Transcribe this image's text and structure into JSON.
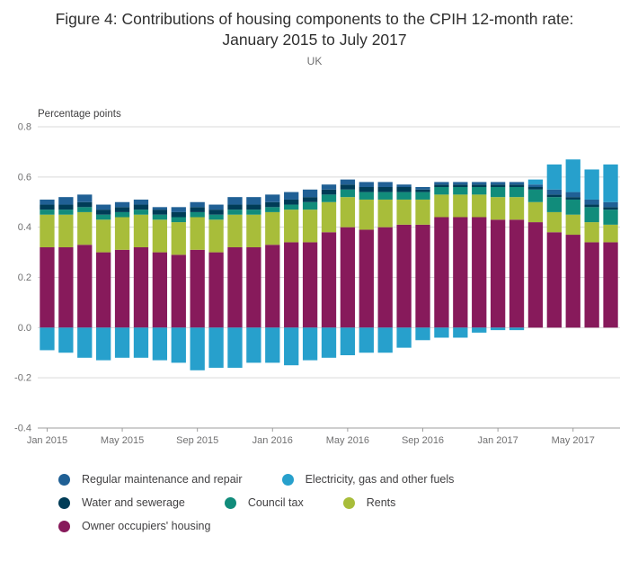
{
  "title": "Figure 4: Contributions of housing components to the CPIH 12-month rate: January 2015 to July 2017",
  "subtitle": "UK",
  "chart_data": {
    "type": "bar",
    "stacked": true,
    "title": "Figure 4: Contributions of housing components to the CPIH 12-month rate: January 2015 to July 2017",
    "subtitle": "UK",
    "ylabel": "Percentage points",
    "xlabel": "",
    "ylim": [
      -0.4,
      0.8
    ],
    "y_ticks": [
      0.8,
      0.6,
      0.4,
      0.2,
      0.0,
      -0.2,
      -0.4
    ],
    "grid": true,
    "legend_position": "bottom",
    "x": [
      "Jan 2015",
      "Feb 2015",
      "Mar 2015",
      "Apr 2015",
      "May 2015",
      "Jun 2015",
      "Jul 2015",
      "Aug 2015",
      "Sep 2015",
      "Oct 2015",
      "Nov 2015",
      "Dec 2015",
      "Jan 2016",
      "Feb 2016",
      "Mar 2016",
      "Apr 2016",
      "May 2016",
      "Jun 2016",
      "Jul 2016",
      "Aug 2016",
      "Sep 2016",
      "Oct 2016",
      "Nov 2016",
      "Dec 2016",
      "Jan 2017",
      "Feb 2017",
      "Mar 2017",
      "Apr 2017",
      "May 2017",
      "Jun 2017",
      "Jul 2017"
    ],
    "x_tick_labels": [
      "Jan 2015",
      "May 2015",
      "Sep 2015",
      "Jan 2016",
      "May 2016",
      "Sep 2016",
      "Jan 2017",
      "May 2017"
    ],
    "series": [
      {
        "name": "Owner occupiers' housing",
        "color": "#871A5B",
        "values": [
          0.32,
          0.32,
          0.33,
          0.3,
          0.31,
          0.32,
          0.3,
          0.29,
          0.31,
          0.3,
          0.32,
          0.32,
          0.33,
          0.34,
          0.34,
          0.38,
          0.4,
          0.39,
          0.4,
          0.41,
          0.41,
          0.44,
          0.44,
          0.44,
          0.43,
          0.43,
          0.42,
          0.38,
          0.37,
          0.34,
          0.34
        ]
      },
      {
        "name": "Rents",
        "color": "#A8BD3A",
        "values": [
          0.13,
          0.13,
          0.13,
          0.13,
          0.13,
          0.13,
          0.13,
          0.13,
          0.13,
          0.13,
          0.13,
          0.13,
          0.13,
          0.13,
          0.13,
          0.12,
          0.12,
          0.12,
          0.11,
          0.1,
          0.1,
          0.09,
          0.09,
          0.09,
          0.09,
          0.09,
          0.08,
          0.08,
          0.08,
          0.08,
          0.07
        ]
      },
      {
        "name": "Council tax",
        "color": "#118C7B",
        "values": [
          0.02,
          0.02,
          0.02,
          0.02,
          0.02,
          0.02,
          0.02,
          0.02,
          0.02,
          0.02,
          0.02,
          0.02,
          0.02,
          0.02,
          0.03,
          0.03,
          0.03,
          0.03,
          0.03,
          0.03,
          0.03,
          0.03,
          0.03,
          0.03,
          0.04,
          0.04,
          0.05,
          0.06,
          0.06,
          0.06,
          0.06
        ]
      },
      {
        "name": "Water and sewerage",
        "color": "#003C57",
        "values": [
          0.02,
          0.02,
          0.02,
          0.02,
          0.02,
          0.02,
          0.02,
          0.02,
          0.02,
          0.02,
          0.02,
          0.02,
          0.02,
          0.02,
          0.02,
          0.02,
          0.02,
          0.02,
          0.02,
          0.02,
          0.01,
          0.01,
          0.01,
          0.01,
          0.01,
          0.01,
          0.01,
          0.01,
          0.01,
          0.01,
          0.01
        ]
      },
      {
        "name": "Regular maintenance and repair",
        "color": "#206095",
        "values": [
          0.02,
          0.03,
          0.03,
          0.02,
          0.02,
          0.02,
          0.01,
          0.02,
          0.02,
          0.02,
          0.03,
          0.03,
          0.03,
          0.03,
          0.03,
          0.02,
          0.02,
          0.02,
          0.02,
          0.01,
          0.01,
          0.01,
          0.01,
          0.01,
          0.01,
          0.01,
          0.01,
          0.02,
          0.02,
          0.02,
          0.02
        ]
      },
      {
        "name": "Electricity, gas and other fuels",
        "color": "#27A0CC",
        "values": [
          -0.09,
          -0.1,
          -0.12,
          -0.13,
          -0.12,
          -0.12,
          -0.13,
          -0.14,
          -0.17,
          -0.16,
          -0.16,
          -0.14,
          -0.14,
          -0.15,
          -0.13,
          -0.12,
          -0.11,
          -0.1,
          -0.1,
          -0.08,
          -0.05,
          -0.04,
          -0.04,
          -0.02,
          -0.01,
          -0.01,
          0.02,
          0.1,
          0.13,
          0.12,
          0.15
        ]
      }
    ]
  },
  "legend": {
    "rows": [
      [
        {
          "label": "Regular maintenance and repair",
          "color": "#206095"
        },
        {
          "label": "Electricity, gas and other fuels",
          "color": "#27A0CC"
        }
      ],
      [
        {
          "label": "Water and sewerage",
          "color": "#003C57"
        },
        {
          "label": "Council tax",
          "color": "#118C7B"
        },
        {
          "label": "Rents",
          "color": "#A8BD3A"
        }
      ],
      [
        {
          "label": "Owner occupiers' housing",
          "color": "#871A5B"
        }
      ]
    ]
  }
}
